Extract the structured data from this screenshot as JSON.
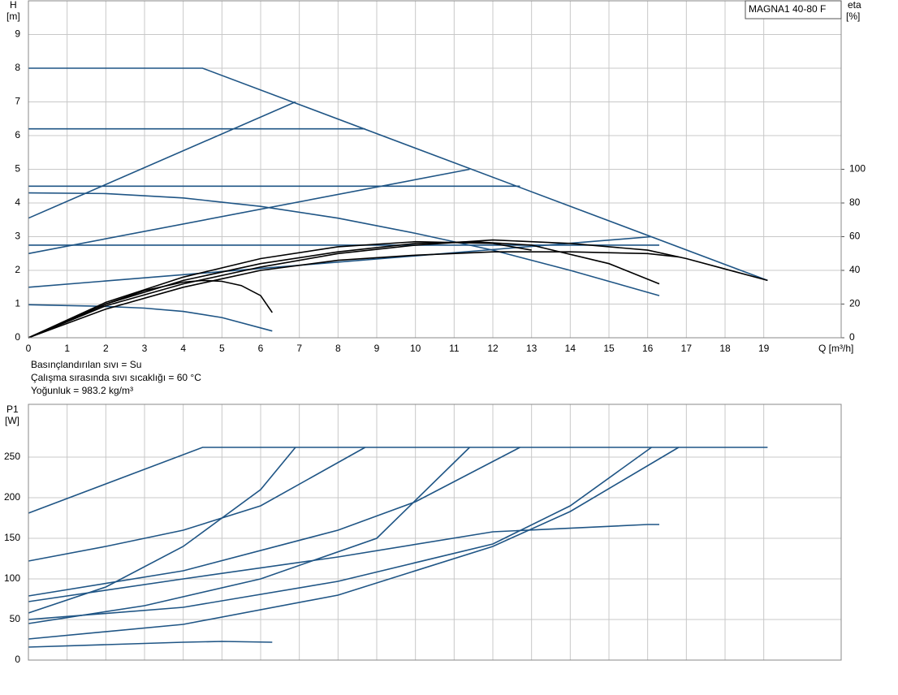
{
  "chart_data": [
    {
      "type": "line",
      "title": "MAGNA1 40-80 F",
      "y_label": "H",
      "y_unit": "[m]",
      "y2_label": "eta",
      "y2_unit": "[%]",
      "x_label": "Q [m³/h]",
      "notes": [
        "Basınçlandırılan sıvı = Su",
        "Çalışma sırasında sıvı sıcaklığı = 60 °C",
        "Yoğunluk = 983.2 kg/m³"
      ],
      "xlim": [
        0,
        21
      ],
      "xticks": [
        0,
        1,
        2,
        3,
        4,
        5,
        6,
        7,
        8,
        9,
        10,
        11,
        12,
        13,
        14,
        15,
        16,
        17,
        18,
        19
      ],
      "ylim": [
        0,
        10
      ],
      "yticks": [
        0,
        1,
        2,
        3,
        4,
        5,
        6,
        7,
        8,
        9
      ],
      "y2lim": [
        0,
        200
      ],
      "y2ticks": [
        0,
        20,
        40,
        60,
        80,
        100
      ],
      "grid": true,
      "series": [
        {
          "color": "#1f5585",
          "x": [
            0,
            4.5,
            19.1
          ],
          "values": [
            8,
            8,
            1.7
          ]
        },
        {
          "color": "#1f5585",
          "x": [
            0,
            8.7
          ],
          "values": [
            6.2,
            6.2
          ]
        },
        {
          "color": "#1f5585",
          "x": [
            0,
            12.7
          ],
          "values": [
            4.5,
            4.5
          ]
        },
        {
          "color": "#1f5585",
          "x": [
            0,
            16.3
          ],
          "values": [
            2.75,
            2.75
          ]
        },
        {
          "color": "#1f5585",
          "x": [
            0,
            6.9
          ],
          "values": [
            3.55,
            7
          ]
        },
        {
          "color": "#1f5585",
          "x": [
            0,
            11.4
          ],
          "values": [
            2.5,
            5
          ]
        },
        {
          "color": "#1f5585",
          "x": [
            0,
            16.1
          ],
          "values": [
            1.5,
            3
          ]
        },
        {
          "color": "#1f5585",
          "x": [
            0,
            2,
            4,
            6,
            8,
            10,
            12,
            14,
            16.3
          ],
          "values": [
            4.3,
            4.28,
            4.15,
            3.9,
            3.55,
            3.1,
            2.6,
            2.0,
            1.25
          ]
        },
        {
          "color": "#1f5585",
          "x": [
            0,
            2,
            3,
            4,
            5,
            6.3
          ],
          "values": [
            0.98,
            0.93,
            0.88,
            0.78,
            0.6,
            0.2
          ]
        },
        {
          "color": "#000000",
          "axis": "y2",
          "x": [
            0,
            1,
            2,
            3,
            4,
            4.5,
            5,
            5.5,
            6,
            6.3
          ],
          "values": [
            0,
            10,
            20,
            28,
            33,
            34,
            33.5,
            31,
            25,
            15
          ]
        },
        {
          "color": "#000000",
          "axis": "y2",
          "x": [
            0,
            2,
            4,
            6,
            8,
            10,
            11.5,
            13,
            15,
            16.3
          ],
          "values": [
            0,
            20,
            34,
            44,
            51,
            56,
            57,
            55,
            44,
            32
          ]
        },
        {
          "color": "#000000",
          "axis": "y2",
          "x": [
            0,
            2,
            4,
            6,
            8,
            10,
            12,
            14,
            16,
            17,
            19.1
          ],
          "values": [
            0,
            19,
            32,
            42,
            50,
            55,
            58,
            56,
            52,
            47,
            34
          ]
        },
        {
          "color": "#000000",
          "axis": "y2",
          "x": [
            0,
            2,
            4,
            6,
            8,
            10,
            12,
            14,
            16,
            16.8
          ],
          "values": [
            0,
            17,
            30,
            40,
            46,
            49,
            51,
            51,
            50,
            48
          ]
        },
        {
          "color": "#000000",
          "axis": "y2",
          "x": [
            0,
            2,
            4,
            6,
            8,
            10,
            12,
            13
          ],
          "values": [
            0,
            21,
            36,
            47,
            54,
            57,
            56,
            52
          ]
        }
      ]
    },
    {
      "type": "line",
      "y_label": "P1",
      "y_unit": "[W]",
      "xlim": [
        0,
        21
      ],
      "ylim": [
        0,
        315
      ],
      "yticks": [
        0,
        50,
        100,
        150,
        200,
        250
      ],
      "grid": true,
      "series": [
        {
          "color": "#1f5585",
          "x": [
            0,
            4.5,
            19.1
          ],
          "values": [
            181,
            262,
            262
          ]
        },
        {
          "color": "#1f5585",
          "x": [
            0,
            2,
            4,
            6,
            8.7
          ],
          "values": [
            122,
            140,
            160,
            190,
            262
          ]
        },
        {
          "color": "#1f5585",
          "x": [
            0,
            2,
            4,
            6,
            6.9
          ],
          "values": [
            58,
            90,
            140,
            210,
            262
          ]
        },
        {
          "color": "#1f5585",
          "x": [
            0,
            4,
            8,
            10,
            12.7
          ],
          "values": [
            79,
            110,
            160,
            195,
            262
          ]
        },
        {
          "color": "#1f5585",
          "x": [
            0,
            3,
            6,
            9,
            11.4
          ],
          "values": [
            45,
            67,
            100,
            150,
            262
          ]
        },
        {
          "color": "#1f5585",
          "x": [
            0,
            4,
            8,
            12,
            16,
            16.3
          ],
          "values": [
            72,
            100,
            127,
            158,
            167,
            167
          ]
        },
        {
          "color": "#1f5585",
          "x": [
            0,
            4,
            8,
            12,
            14,
            16.1
          ],
          "values": [
            50,
            65,
            97,
            143,
            190,
            262
          ]
        },
        {
          "color": "#1f5585",
          "x": [
            0,
            4,
            8,
            12,
            14,
            16.8
          ],
          "values": [
            26,
            44,
            80,
            140,
            183,
            262
          ]
        },
        {
          "color": "#1f5585",
          "x": [
            0,
            2,
            4,
            5,
            6.3
          ],
          "values": [
            16,
            19,
            22,
            23,
            22
          ]
        }
      ]
    }
  ]
}
